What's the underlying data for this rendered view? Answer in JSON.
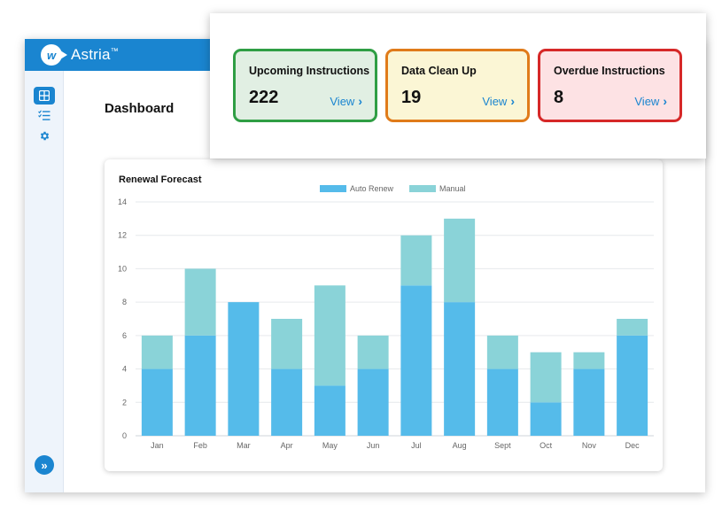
{
  "app": {
    "brand": "Astria",
    "brand_mark": "™",
    "logo_letter": "w"
  },
  "sidebar": {
    "items": [
      {
        "name": "dashboard-icon",
        "active": true
      },
      {
        "name": "checklist-icon",
        "active": false
      },
      {
        "name": "gear-icon",
        "active": false
      }
    ],
    "expand_label": "»"
  },
  "page": {
    "title": "Dashboard"
  },
  "stats": [
    {
      "label": "Upcoming Instructions",
      "value": "222",
      "link": "View",
      "bg": "#e1efe3",
      "border": "#2f9e44"
    },
    {
      "label": "Data Clean Up",
      "value": "19",
      "link": "View",
      "bg": "#fbf6d5",
      "border": "#e07b1a"
    },
    {
      "label": "Overdue Instructions",
      "value": "8",
      "link": "View",
      "bg": "#fde2e4",
      "border": "#d62828"
    }
  ],
  "chart_data": {
    "type": "bar",
    "stacked": true,
    "title": "Renewal Forecast",
    "categories": [
      "Jan",
      "Feb",
      "Mar",
      "Apr",
      "May",
      "Jun",
      "Jul",
      "Aug",
      "Sept",
      "Oct",
      "Nov",
      "Dec"
    ],
    "series": [
      {
        "name": "Auto Renew",
        "color": "#55bbea",
        "values": [
          4,
          6,
          8,
          4,
          3,
          4,
          9,
          8,
          4,
          2,
          4,
          6
        ]
      },
      {
        "name": "Manual",
        "color": "#8ad3d8",
        "values": [
          2,
          4,
          0,
          3,
          6,
          2,
          3,
          5,
          2,
          3,
          1,
          1
        ]
      }
    ],
    "ylim": [
      0,
      14
    ],
    "yticks": [
      0,
      2,
      4,
      6,
      8,
      10,
      12,
      14
    ],
    "grid": true,
    "legend": "top-center"
  }
}
